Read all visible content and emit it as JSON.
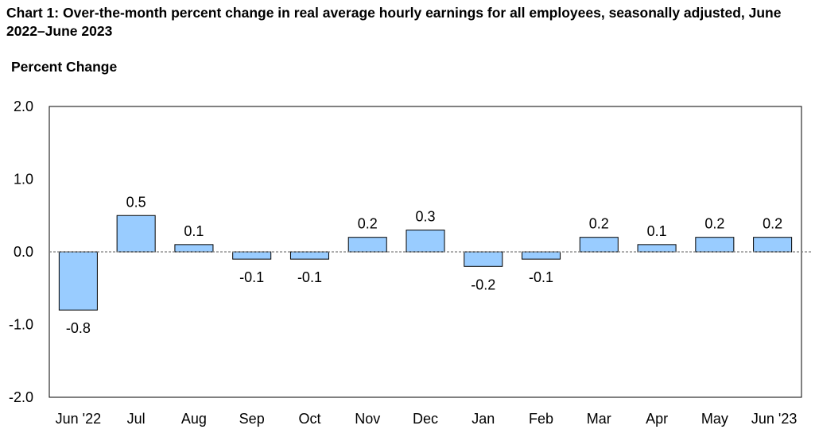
{
  "chart_data": {
    "type": "bar",
    "title": "Chart 1: Over-the-month percent change in real average hourly earnings for all employees, seasonally adjusted, June 2022–June 2023",
    "ylabel": "Percent Change",
    "xlabel": "",
    "ylim": [
      -2.0,
      2.0
    ],
    "yticks": [
      "2.0",
      "1.0",
      "0.0",
      "-1.0",
      "-2.0"
    ],
    "ytick_values": [
      2.0,
      1.0,
      0.0,
      -1.0,
      -2.0
    ],
    "categories": [
      "Jun '22",
      "Jul",
      "Aug",
      "Sep",
      "Oct",
      "Nov",
      "Dec",
      "Jan",
      "Feb",
      "Mar",
      "Apr",
      "May",
      "Jun '23"
    ],
    "values": [
      -0.8,
      0.5,
      0.1,
      -0.1,
      -0.1,
      0.2,
      0.3,
      -0.2,
      -0.1,
      0.2,
      0.1,
      0.2,
      0.2
    ],
    "data_labels": [
      "-0.8",
      "0.5",
      "0.1",
      "-0.1",
      "-0.1",
      "0.2",
      "0.3",
      "-0.2",
      "-0.1",
      "0.2",
      "0.1",
      "0.2",
      "0.2"
    ],
    "bar_color": "#99CCFF",
    "bar_outline": "#000000",
    "grid": false,
    "legend": false
  }
}
